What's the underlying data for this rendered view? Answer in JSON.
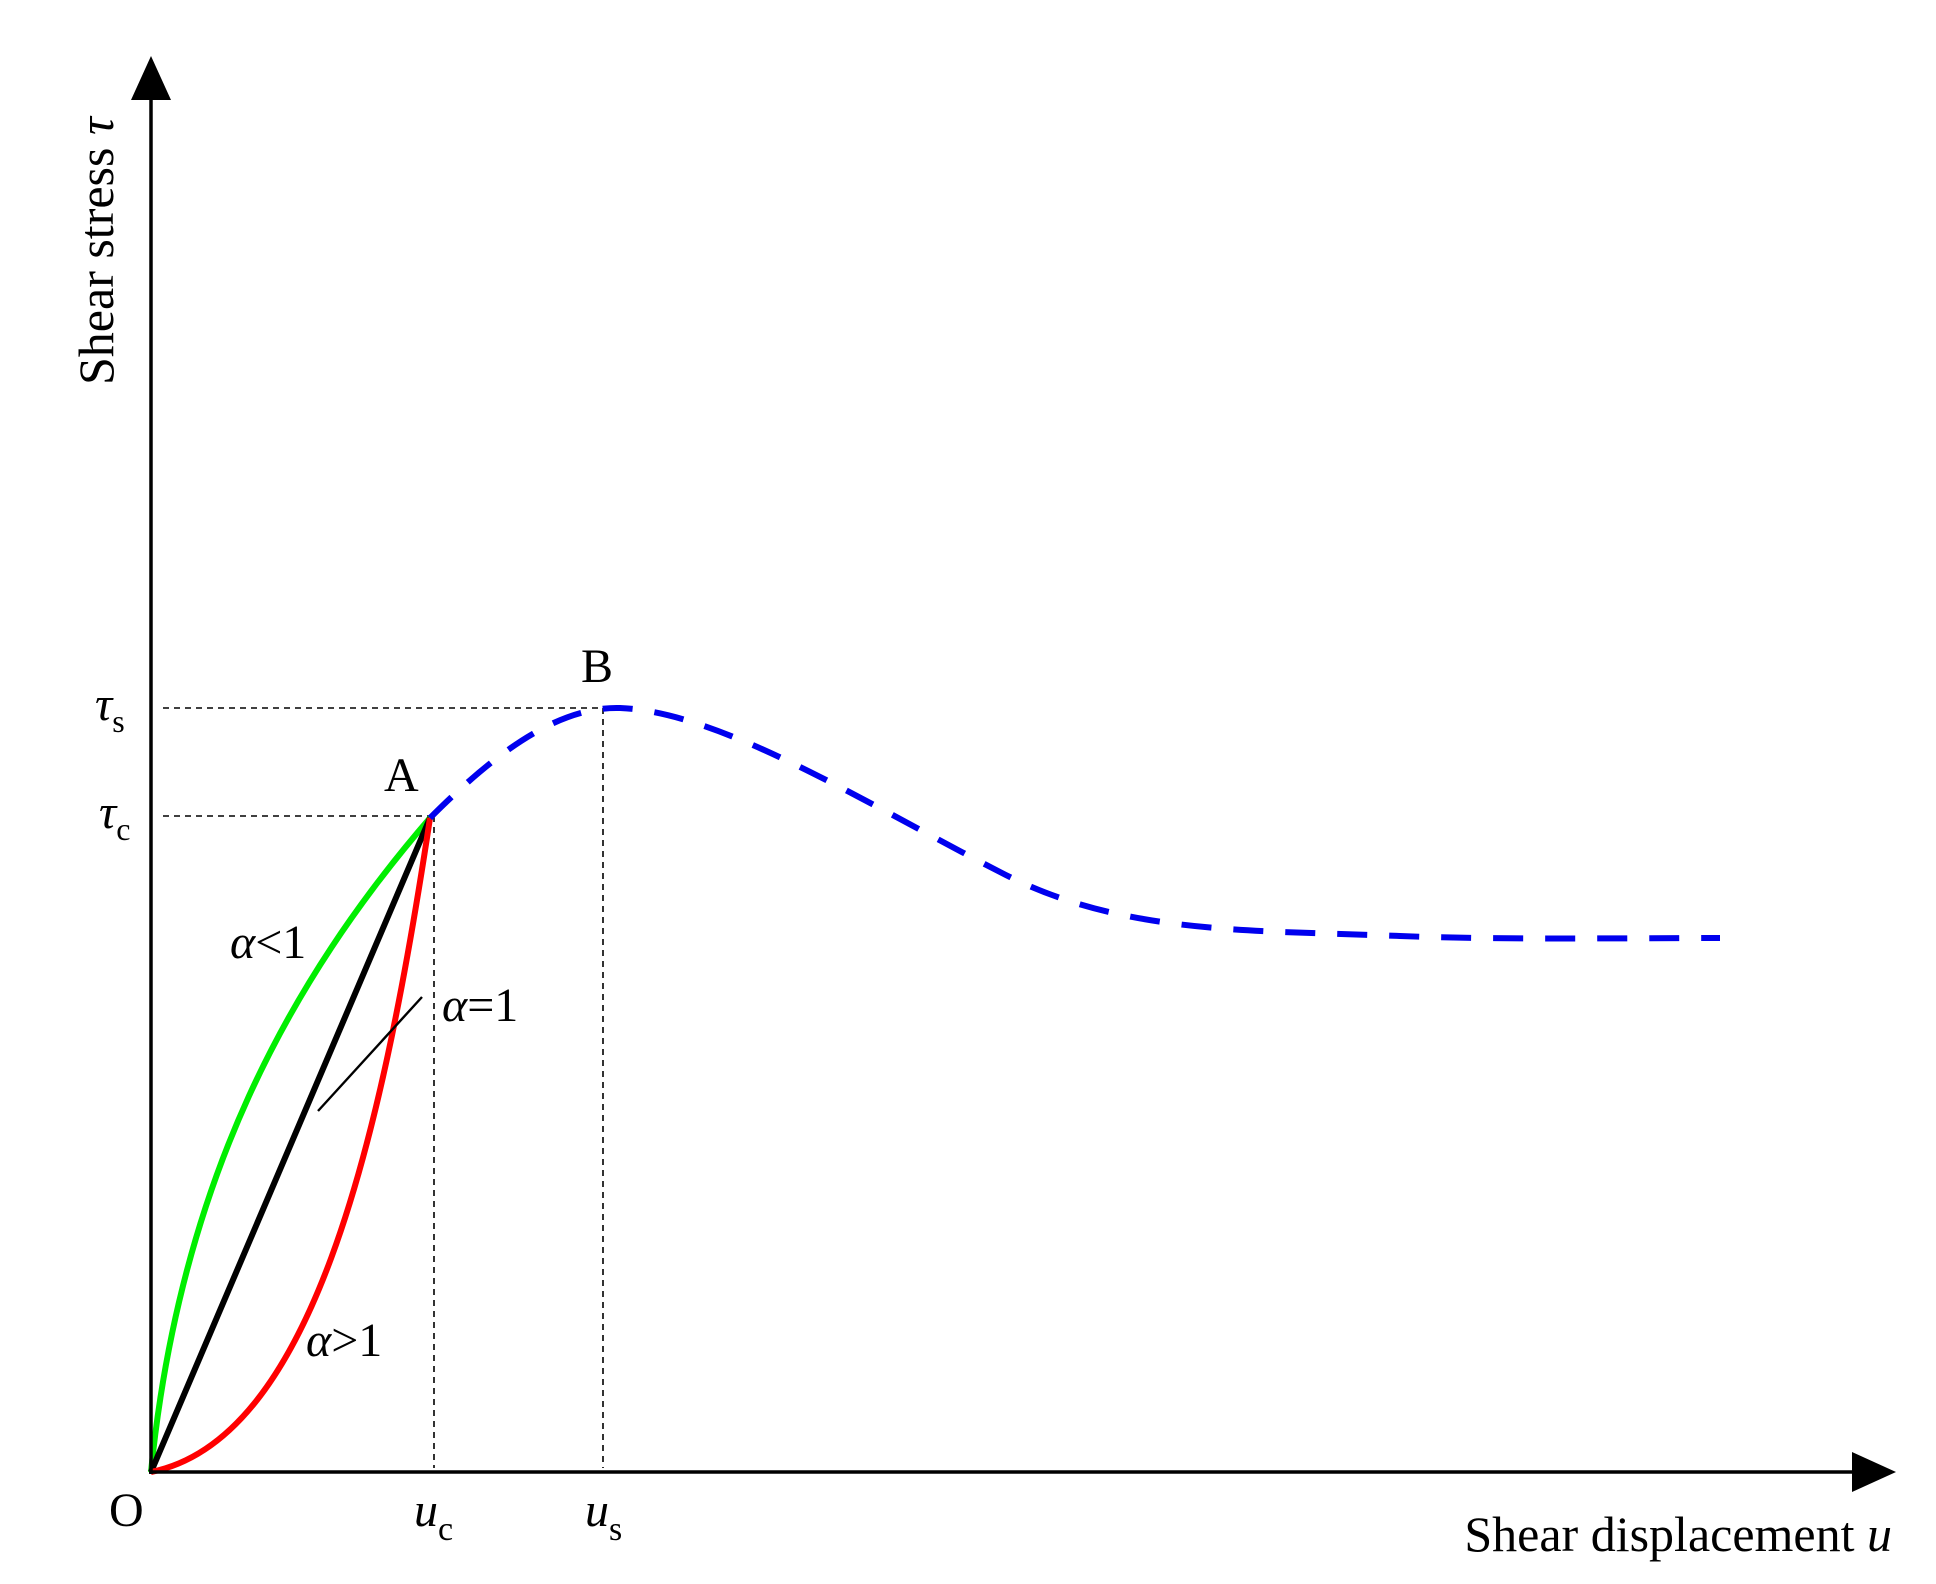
{
  "axes": {
    "x_label": "Shear displacement",
    "x_symbol": "u",
    "y_label": "Shear stress",
    "y_symbol": "τ",
    "origin": "O"
  },
  "points": {
    "A": "A",
    "B": "B"
  },
  "ticks": {
    "x": [
      {
        "main": "u",
        "sub": "c"
      },
      {
        "main": "u",
        "sub": "s"
      }
    ],
    "y": [
      {
        "main": "τ",
        "sub": "s"
      },
      {
        "main": "τ",
        "sub": "c"
      }
    ]
  },
  "curves": {
    "alpha_lt_1": {
      "symbol": "α",
      "text": "<1",
      "color": "#00ee00"
    },
    "alpha_eq_1": {
      "symbol": "α",
      "text": "=1",
      "color": "#000000"
    },
    "alpha_gt_1": {
      "symbol": "α",
      "text": ">1",
      "color": "#ff0000"
    },
    "post_peak": {
      "color": "#0000ee"
    }
  }
}
